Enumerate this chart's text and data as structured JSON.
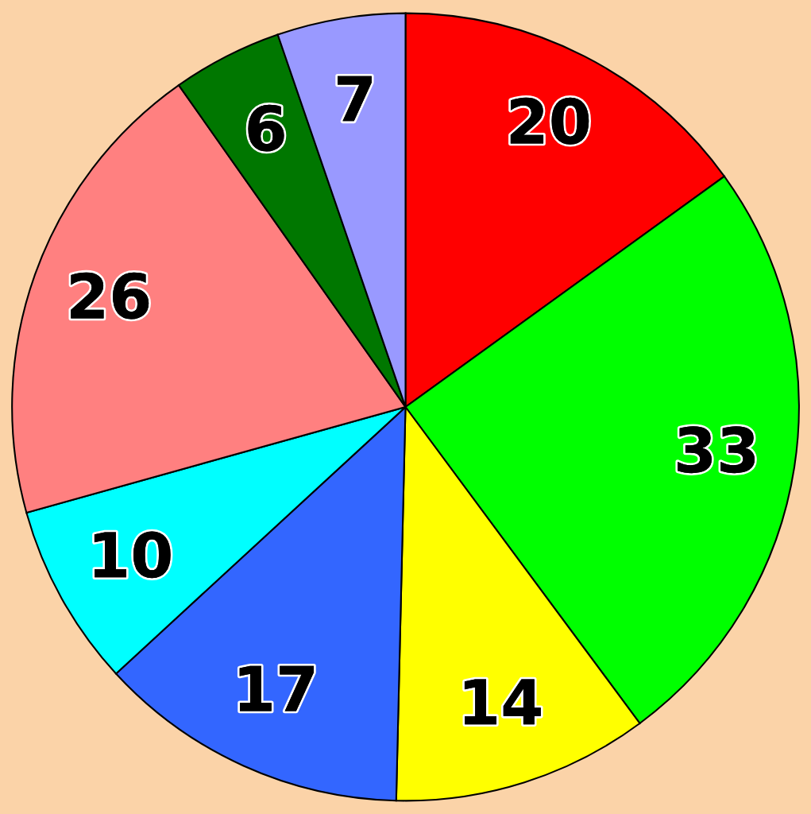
{
  "chart_data": {
    "type": "pie",
    "categories": [
      null,
      null,
      null,
      null,
      null,
      null,
      null,
      null
    ],
    "values": [
      20,
      33,
      14,
      17,
      10,
      26,
      6,
      7
    ],
    "colors": [
      "#ff0000",
      "#00ff00",
      "#ffff00",
      "#3366ff",
      "#00ffff",
      "#ff8080",
      "#007700",
      "#9999ff"
    ],
    "data_labels": true
  }
}
